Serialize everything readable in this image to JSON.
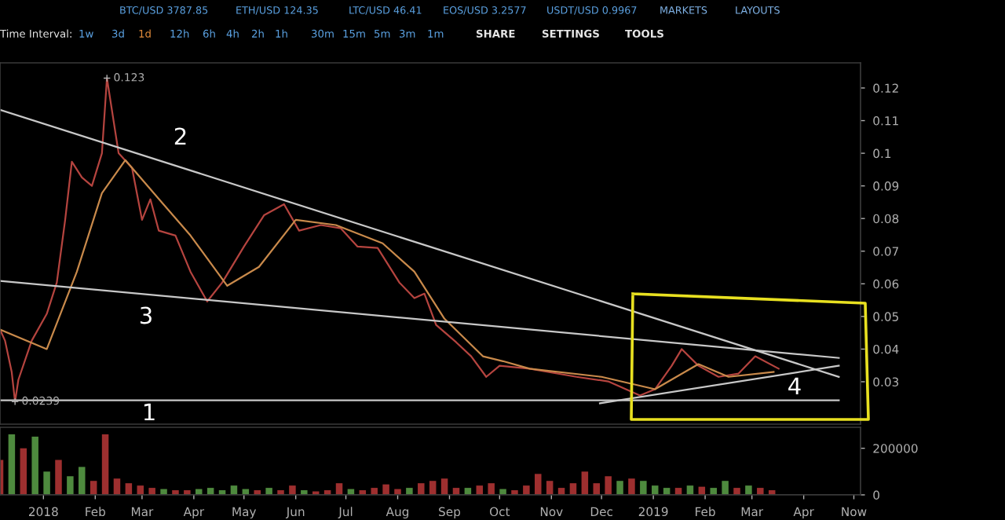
{
  "chart_data": [
    {
      "type": "other",
      "annotations": [
        "BTC/USD 3787.85",
        "ETH/USD 124.35",
        "LTC/USD 46.41",
        "EOS/USD 3.2577",
        "USDT/USD 0.9967",
        "MARKETS",
        "LAYOUTS",
        "Time Interval:",
        "1w",
        "3d",
        "1d",
        "12h",
        "6h",
        "4h",
        "2h",
        "1h",
        "30m",
        "15m",
        "5m",
        "3m",
        "1m",
        "SHARE",
        "SETTINGS",
        "TOOLS"
      ]
    },
    {
      "type": "line",
      "tick_labels": "y",
      "marker": "none",
      "line_style": "solid",
      "xlim": [
        "2017-12-06",
        "2019-05-05"
      ],
      "ylim": [
        0.017,
        0.1277
      ],
      "yticks": [
        0.03,
        0.04,
        0.05,
        0.06,
        0.07,
        0.08,
        0.09,
        0.1,
        0.11,
        0.12
      ],
      "series": [
        {
          "color": "#b5443f",
          "x": [
            "2017-12-06",
            "2017-12-09",
            "2017-12-13",
            "2017-12-15",
            "2017-12-17",
            "2017-12-25",
            "2018-01-03",
            "2018-01-09",
            "2018-01-14",
            "2018-01-18",
            "2018-01-24",
            "2018-01-30",
            "2018-02-05",
            "2018-02-08",
            "2018-02-15",
            "2018-02-23",
            "2018-03-01",
            "2018-03-06",
            "2018-03-11",
            "2018-03-21",
            "2018-03-30",
            "2018-04-09",
            "2018-04-18",
            "2018-05-01",
            "2018-05-13",
            "2018-05-25",
            "2018-06-03",
            "2018-06-16",
            "2018-06-28",
            "2018-07-08",
            "2018-07-20",
            "2018-08-02",
            "2018-08-11",
            "2018-08-17",
            "2018-08-24",
            "2018-09-05",
            "2018-09-14",
            "2018-09-23",
            "2018-10-01",
            "2018-10-19",
            "2018-11-16",
            "2018-12-05",
            "2018-12-24",
            "2019-01-02",
            "2019-01-12",
            "2019-01-18",
            "2019-01-28",
            "2019-02-09",
            "2019-02-21",
            "2019-03-03",
            "2019-03-17"
          ],
          "values": [
            0.046,
            0.0426,
            0.033,
            0.0239,
            0.0306,
            0.0426,
            0.0508,
            0.0604,
            0.0796,
            0.0974,
            0.0926,
            0.09,
            0.1,
            0.123,
            0.1,
            0.0955,
            0.0796,
            0.0859,
            0.0763,
            0.0748,
            0.0637,
            0.0546,
            0.0604,
            0.0714,
            0.081,
            0.0844,
            0.0763,
            0.078,
            0.077,
            0.0714,
            0.071,
            0.0604,
            0.0556,
            0.057,
            0.0474,
            0.0421,
            0.0378,
            0.0315,
            0.0349,
            0.034,
            0.0315,
            0.0301,
            0.0258,
            0.0277,
            0.0349,
            0.04,
            0.0349,
            0.0315,
            0.0325,
            0.0378,
            0.034
          ]
        },
        {
          "color": "#c98a4b",
          "x": [
            "2017-12-06",
            "2018-01-03",
            "2018-01-21",
            "2018-02-05",
            "2018-02-19",
            "2018-03-08",
            "2018-03-30",
            "2018-04-21",
            "2018-05-10",
            "2018-06-01",
            "2018-06-25",
            "2018-07-23",
            "2018-08-11",
            "2018-08-29",
            "2018-09-21",
            "2018-10-03",
            "2018-10-19",
            "2018-12-01",
            "2019-01-02",
            "2019-01-28",
            "2019-02-15",
            "2019-03-14"
          ],
          "values": [
            0.046,
            0.04,
            0.0637,
            0.0878,
            0.0979,
            0.0878,
            0.0748,
            0.0594,
            0.0652,
            0.0796,
            0.078,
            0.0724,
            0.0637,
            0.0493,
            0.0378,
            0.0363,
            0.034,
            0.0315,
            0.0277,
            0.0354,
            0.0315,
            0.033
          ]
        },
        {
          "color": "#c8c8c8",
          "x": [
            "2017-12-06",
            "2019-04-22"
          ],
          "values": [
            0.1133,
            0.0315
          ]
        },
        {
          "color": "#c8c8c8",
          "x": [
            "2017-12-06",
            "2019-04-22"
          ],
          "values": [
            0.0609,
            0.0373
          ]
        },
        {
          "color": "#c8c8c8",
          "x": [
            "2017-12-06",
            "2019-04-22"
          ],
          "values": [
            0.0243,
            0.0243
          ]
        },
        {
          "color": "#c8c8c8",
          "x": [
            "2018-11-30",
            "2019-04-22"
          ],
          "values": [
            0.0234,
            0.0349
          ]
        }
      ],
      "annotations": [
        "1",
        "2",
        "3",
        "4",
        {
          "text": "0.123",
          "x": "2018-02-08",
          "y": 0.123
        },
        {
          "text": "0.0239",
          "x": "2017-12-15",
          "y": 0.0239
        }
      ]
    },
    {
      "type": "bar",
      "xlim": [
        "2017-12-06",
        "2019-05-05"
      ],
      "ylim": [
        0,
        290000
      ],
      "yticks": [
        0,
        200000
      ],
      "xticks": [
        {
          "value": "2018-01-01",
          "label": "2018"
        },
        {
          "value": "2018-02-01",
          "label": "Feb"
        },
        {
          "value": "2018-03-01",
          "label": "Mar"
        },
        {
          "value": "2018-04-01",
          "label": "Apr"
        },
        {
          "value": "2018-05-01",
          "label": "May"
        },
        {
          "value": "2018-06-01",
          "label": "Jun"
        },
        {
          "value": "2018-07-01",
          "label": "Jul"
        },
        {
          "value": "2018-08-01",
          "label": "Aug"
        },
        {
          "value": "2018-09-01",
          "label": "Sep"
        },
        {
          "value": "2018-10-01",
          "label": "Oct"
        },
        {
          "value": "2018-11-01",
          "label": "Nov"
        },
        {
          "value": "2018-12-01",
          "label": "Dec"
        },
        {
          "value": "2019-01-01",
          "label": "2019"
        },
        {
          "value": "2019-02-01",
          "label": "Feb"
        },
        {
          "value": "2019-03-01",
          "label": "Mar"
        },
        {
          "value": "2019-04-01",
          "label": "Apr"
        },
        {
          "value": "2019-05-01",
          "label": "Now"
        }
      ],
      "x": [
        "2017-12-06",
        "2017-12-13",
        "2017-12-20",
        "2017-12-27",
        "2018-01-03",
        "2018-01-10",
        "2018-01-17",
        "2018-01-24",
        "2018-01-31",
        "2018-02-07",
        "2018-02-14",
        "2018-02-21",
        "2018-02-28",
        "2018-03-07",
        "2018-03-14",
        "2018-03-21",
        "2018-03-28",
        "2018-04-04",
        "2018-04-11",
        "2018-04-18",
        "2018-04-25",
        "2018-05-02",
        "2018-05-09",
        "2018-05-16",
        "2018-05-23",
        "2018-05-30",
        "2018-06-06",
        "2018-06-13",
        "2018-06-20",
        "2018-06-27",
        "2018-07-04",
        "2018-07-11",
        "2018-07-18",
        "2018-07-25",
        "2018-08-01",
        "2018-08-08",
        "2018-08-15",
        "2018-08-22",
        "2018-08-29",
        "2018-09-05",
        "2018-09-12",
        "2018-09-19",
        "2018-09-26",
        "2018-10-03",
        "2018-10-10",
        "2018-10-17",
        "2018-10-24",
        "2018-10-31",
        "2018-11-07",
        "2018-11-14",
        "2018-11-21",
        "2018-11-28",
        "2018-12-05",
        "2018-12-12",
        "2018-12-19",
        "2018-12-26",
        "2019-01-02",
        "2019-01-09",
        "2019-01-16",
        "2019-01-23",
        "2019-01-30",
        "2019-02-06",
        "2019-02-13",
        "2019-02-20",
        "2019-02-27",
        "2019-03-06",
        "2019-03-13"
      ],
      "values": [
        150000,
        260000,
        200000,
        250000,
        100000,
        150000,
        80000,
        120000,
        60000,
        260000,
        70000,
        50000,
        40000,
        30000,
        25000,
        20000,
        20000,
        25000,
        30000,
        20000,
        40000,
        25000,
        20000,
        30000,
        20000,
        40000,
        20000,
        15000,
        20000,
        50000,
        25000,
        20000,
        30000,
        45000,
        25000,
        30000,
        50000,
        60000,
        70000,
        30000,
        30000,
        40000,
        50000,
        25000,
        20000,
        40000,
        90000,
        60000,
        30000,
        50000,
        100000,
        50000,
        80000,
        60000,
        70000,
        60000,
        40000,
        30000,
        30000,
        40000,
        35000,
        30000,
        60000,
        30000,
        40000,
        30000,
        20000
      ],
      "colors": [
        "#9e2f2f",
        "#4e8a3e",
        "#9e2f2f",
        "#4e8a3e",
        "#4e8a3e",
        "#9e2f2f",
        "#4e8a3e",
        "#4e8a3e",
        "#9e2f2f",
        "#9e2f2f",
        "#9e2f2f",
        "#9e2f2f",
        "#9e2f2f",
        "#9e2f2f",
        "#4e8a3e",
        "#9e2f2f",
        "#9e2f2f",
        "#4e8a3e",
        "#4e8a3e",
        "#4e8a3e",
        "#4e8a3e",
        "#4e8a3e",
        "#9e2f2f",
        "#4e8a3e",
        "#9e2f2f",
        "#9e2f2f",
        "#4e8a3e",
        "#9e2f2f",
        "#9e2f2f",
        "#9e2f2f",
        "#4e8a3e",
        "#9e2f2f",
        "#9e2f2f",
        "#9e2f2f",
        "#9e2f2f",
        "#4e8a3e",
        "#9e2f2f",
        "#9e2f2f",
        "#9e2f2f",
        "#9e2f2f",
        "#4e8a3e",
        "#9e2f2f",
        "#9e2f2f",
        "#4e8a3e",
        "#9e2f2f",
        "#9e2f2f",
        "#9e2f2f",
        "#9e2f2f",
        "#9e2f2f",
        "#9e2f2f",
        "#9e2f2f",
        "#9e2f2f",
        "#9e2f2f",
        "#4e8a3e",
        "#9e2f2f",
        "#4e8a3e",
        "#4e8a3e",
        "#4e8a3e",
        "#9e2f2f",
        "#4e8a3e",
        "#9e2f2f",
        "#4e8a3e",
        "#4e8a3e",
        "#9e2f2f",
        "#4e8a3e",
        "#9e2f2f",
        "#9e2f2f"
      ]
    }
  ]
}
